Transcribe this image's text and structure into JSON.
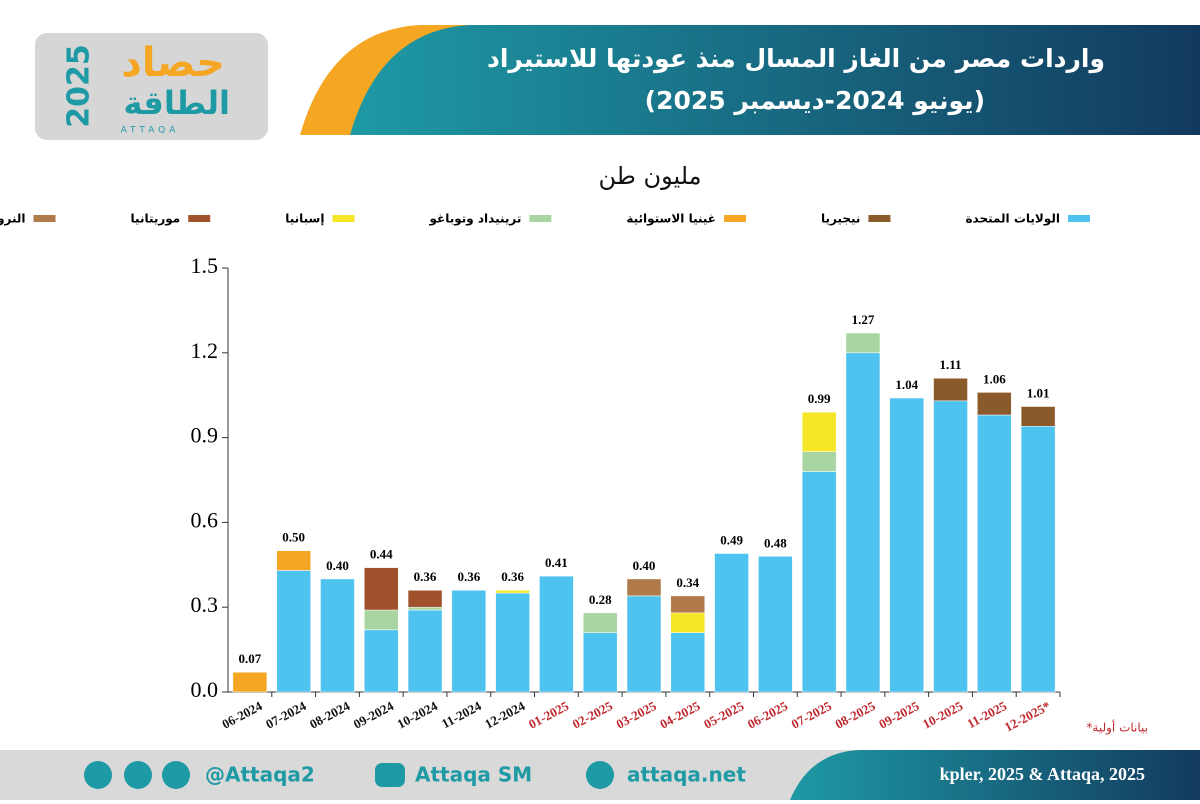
{
  "logo": {
    "title": "حصاد",
    "year": "2025",
    "brand": "الطاقة",
    "latin": "ATTAQA"
  },
  "header": {
    "title_line1": "واردات مصر من الغاز المسال منذ عودتها للاستيراد",
    "title_line2": "(يونيو 2024-ديسمبر 2025)"
  },
  "chart_data": {
    "type": "stacked_bar",
    "subtitle": "مليون طن",
    "categories": [
      "06-2024",
      "07-2024",
      "08-2024",
      "09-2024",
      "10-2024",
      "11-2024",
      "12-2024",
      "01-2025",
      "02-2025",
      "03-2025",
      "04-2025",
      "05-2025",
      "06-2025",
      "07-2025",
      "08-2025",
      "09-2025",
      "10-2025",
      "11-2025",
      "12-2025*"
    ],
    "category_colors": [
      "#111111",
      "#111111",
      "#111111",
      "#111111",
      "#111111",
      "#111111",
      "#111111",
      "#c0272d",
      "#c0272d",
      "#c0272d",
      "#c0272d",
      "#c0272d",
      "#c0272d",
      "#c0272d",
      "#c0272d",
      "#c0272d",
      "#c0272d",
      "#c0272d",
      "#c0272d"
    ],
    "series": [
      {
        "name": "الولايات المتحدة",
        "color": "#4fc3ef",
        "values": [
          0,
          0.43,
          0.4,
          0.22,
          0.29,
          0.36,
          0.35,
          0.41,
          0.21,
          0.34,
          0.21,
          0.49,
          0.48,
          0.78,
          1.2,
          1.04,
          1.03,
          0.98,
          0.94
        ]
      },
      {
        "name": "نيجيريا",
        "color": "#8b5a2b",
        "values": [
          0,
          0,
          0,
          0,
          0,
          0,
          0,
          0,
          0,
          0,
          0,
          0,
          0,
          0,
          0,
          0,
          0.08,
          0.08,
          0.07
        ]
      },
      {
        "name": "غينيا الاستوائية",
        "color": "#f5a623",
        "values": [
          0.07,
          0.07,
          0,
          0,
          0,
          0,
          0,
          0,
          0,
          0,
          0,
          0,
          0,
          0,
          0,
          0,
          0,
          0,
          0
        ]
      },
      {
        "name": "ترينيداد وتوباغو",
        "color": "#a8d5a2",
        "values": [
          0,
          0,
          0,
          0.07,
          0.01,
          0,
          0,
          0,
          0.07,
          0,
          0,
          0,
          0,
          0.07,
          0.07,
          0,
          0,
          0,
          0
        ]
      },
      {
        "name": "إسبانيا",
        "color": "#f5e627",
        "values": [
          0,
          0,
          0,
          0,
          0,
          0,
          0.01,
          0,
          0,
          0,
          0.07,
          0,
          0,
          0.14,
          0,
          0,
          0,
          0,
          0
        ]
      },
      {
        "name": "موريتانيا",
        "color": "#a0522d",
        "values": [
          0,
          0,
          0,
          0.15,
          0.06,
          0,
          0,
          0,
          0,
          0,
          0,
          0,
          0,
          0,
          0,
          0,
          0,
          0,
          0
        ]
      },
      {
        "name": "النرويج",
        "color": "#b07a4a",
        "values": [
          0,
          0,
          0,
          0,
          0,
          0,
          0,
          0,
          0,
          0.06,
          0.06,
          0,
          0,
          0,
          0,
          0,
          0,
          0,
          0
        ]
      }
    ],
    "totals": {
      "values": [
        0.07,
        0.5,
        0.4,
        0.44,
        0.36,
        0.36,
        0.36,
        0.41,
        0.28,
        0.4,
        0.34,
        0.49,
        0.48,
        0.99,
        1.27,
        1.04,
        1.11,
        1.06,
        1.01
      ],
      "value_labels": [
        "0.07",
        "0.50",
        "0.40",
        "0.44",
        "0.36",
        "0.36",
        "0.36",
        "0.41",
        "0.28",
        "0.40",
        "0.34",
        "0.49",
        "0.48",
        "0.99",
        "1.27",
        "1.04",
        "1.11",
        "1.06",
        "1.01"
      ]
    },
    "ylim": [
      0,
      1.5
    ],
    "yticks": [
      {
        "value": 0,
        "label": "0.0"
      },
      0.3,
      0.6,
      0.9,
      1.2,
      {
        "value": 1.5,
        "label": "1.5"
      }
    ],
    "note": "*بيانات أولية"
  },
  "footer": {
    "social": "@Attaqa2",
    "youtube": "Attaqa SM",
    "website": "attaqa.net",
    "source": "kpler, 2025 & Attaqa, 2025"
  }
}
